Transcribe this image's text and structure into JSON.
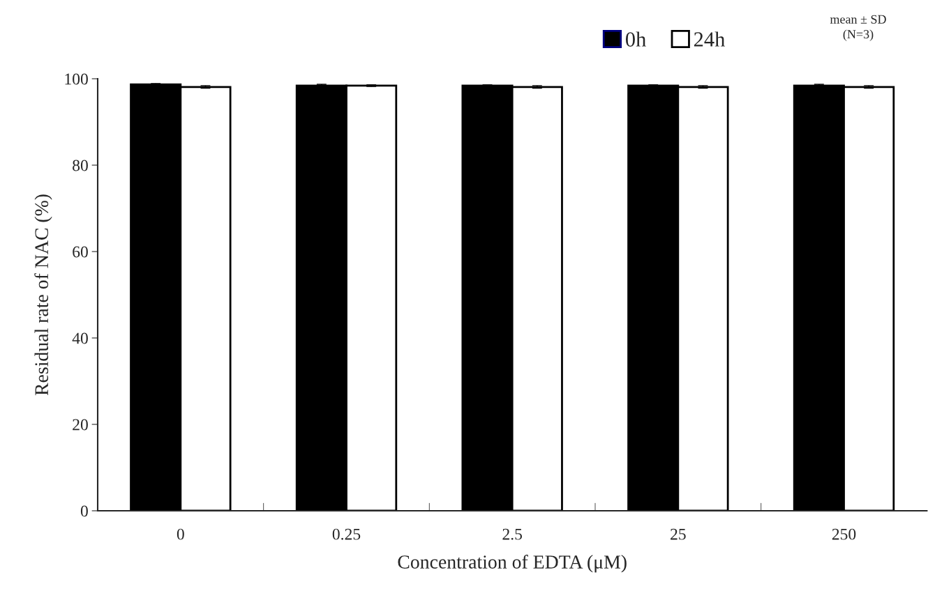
{
  "chart_data": {
    "type": "bar",
    "xlabel": "Concentration of EDTA (μM)",
    "ylabel": "Residual rate of NAC (%)",
    "categories": [
      "0",
      "0.25",
      "2.5",
      "25",
      "250"
    ],
    "series": [
      {
        "name": "0h",
        "color": "#000000",
        "values": [
          98.7,
          98.4,
          98.4,
          98.4,
          98.4
        ],
        "errors": [
          0.2,
          0.3,
          0.2,
          0.2,
          0.3
        ]
      },
      {
        "name": "24h",
        "color": "#ffffff",
        "values": [
          98.1,
          98.4,
          98.1,
          98.1,
          98.1
        ],
        "errors": [
          0.3,
          0.2,
          0.3,
          0.3,
          0.3
        ]
      }
    ],
    "ylim": [
      0,
      100
    ],
    "yticks": [
      0,
      20,
      40,
      60,
      80,
      100
    ],
    "grid": false,
    "legend": "top right",
    "annotations": [
      "mean ± SD\n(N=3)"
    ]
  }
}
